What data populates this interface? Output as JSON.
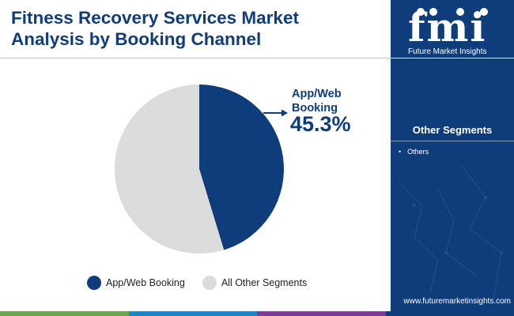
{
  "title_lines": [
    "Fitness Recovery Services Market",
    "Analysis by Booking Channel"
  ],
  "colors": {
    "navy": "#0f3d7c",
    "grey": "#dcdcdc",
    "bar": [
      "#6aa84f",
      "#1c86c6",
      "#7d3c98",
      "#0f3d7c"
    ]
  },
  "callout": {
    "label_lines": [
      "App/Web",
      "Booking"
    ],
    "value": "45.3%"
  },
  "chart_data": {
    "type": "pie",
    "title": "",
    "slices": [
      {
        "label": "App/Web Booking",
        "value": 45.3,
        "color": "#0f3d7c"
      },
      {
        "label": "All Other Segments",
        "value": 54.7,
        "color": "#dcdcdc"
      }
    ],
    "legend_position": "bottom"
  },
  "legend": [
    {
      "label": "App/Web Booking",
      "color": "#0f3d7c"
    },
    {
      "label": "All Other Segments",
      "color": "#dcdcdc"
    }
  ],
  "sidebar": {
    "logo_mark": "fmi",
    "logo_text": "Future Market Insights",
    "segments_title": "Other Segments",
    "segments": [
      "Others"
    ],
    "website": "www.futuremarketinsights.com"
  }
}
